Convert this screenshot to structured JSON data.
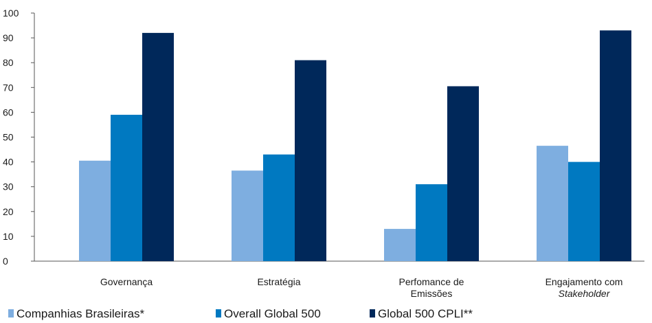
{
  "chart_data": {
    "type": "bar",
    "categories": [
      [
        "Governança"
      ],
      [
        "Estratégia"
      ],
      [
        "Perfomance de",
        "Emissões"
      ],
      [
        "Engajamento com",
        "Stakeholder"
      ]
    ],
    "category_italic_lines": [
      [],
      [],
      [],
      [
        1
      ]
    ],
    "series": [
      {
        "name": "Companhias Brasileiras*",
        "color": "#7eaee0",
        "values": [
          40.5,
          36.5,
          13,
          46.5
        ]
      },
      {
        "name": "Overall Global 500",
        "color": "#0079c1",
        "values": [
          59,
          43,
          31,
          40
        ]
      },
      {
        "name": "Global 500 CPLI**",
        "color": "#00285a",
        "values": [
          92,
          81,
          70.5,
          93
        ]
      }
    ],
    "yticks": [
      0,
      10,
      20,
      30,
      40,
      50,
      60,
      70,
      80,
      90,
      100
    ],
    "ylim": [
      0,
      100
    ],
    "title": "",
    "xlabel": "",
    "ylabel": "",
    "grid": false,
    "legend_position": "bottom-left"
  }
}
